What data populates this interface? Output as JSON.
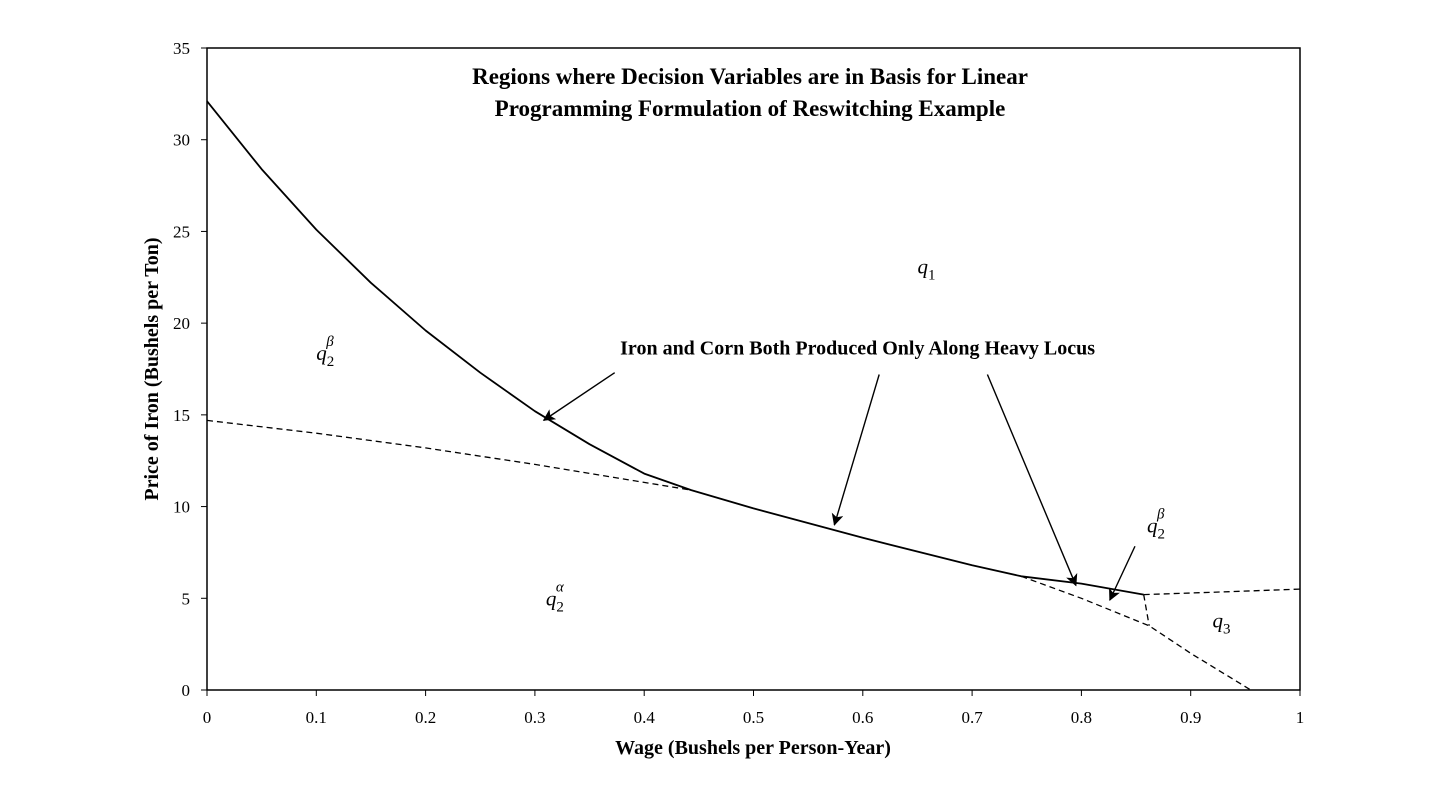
{
  "chart_data": {
    "type": "line",
    "title_lines": [
      "Regions where Decision Variables are in Basis for Linear",
      "Programming Formulation of Reswitching Example"
    ],
    "xlabel": "Wage (Bushels per Person-Year)",
    "ylabel": "Price of Iron (Bushels per Ton)",
    "xlim": [
      0,
      1
    ],
    "ylim": [
      0,
      35
    ],
    "x_ticks": [
      0,
      0.1,
      0.2,
      0.3,
      0.4,
      0.5,
      0.6,
      0.7,
      0.8,
      0.9,
      1
    ],
    "x_tick_labels": [
      "0",
      "0.1",
      "0.2",
      "0.3",
      "0.4",
      "0.5",
      "0.6",
      "0.7",
      "0.8",
      "0.9",
      "1"
    ],
    "y_ticks": [
      0,
      5,
      10,
      15,
      20,
      25,
      30,
      35
    ],
    "y_tick_labels": [
      "0",
      "5",
      "10",
      "15",
      "20",
      "25",
      "30",
      "35"
    ],
    "grid": false,
    "series": [
      {
        "name": "heavy-locus",
        "style": "solid",
        "x": [
          0,
          0.05,
          0.1,
          0.15,
          0.2,
          0.25,
          0.3,
          0.35,
          0.4,
          0.443,
          0.5,
          0.6,
          0.7,
          0.745,
          0.8,
          0.857
        ],
        "y": [
          32.1,
          28.4,
          25.1,
          22.2,
          19.6,
          17.3,
          15.2,
          13.4,
          11.8,
          10.9,
          9.9,
          8.3,
          6.8,
          6.2,
          5.8,
          5.2
        ]
      },
      {
        "name": "dashed-upper-left",
        "style": "dashed",
        "x": [
          0,
          0.1,
          0.2,
          0.3,
          0.443
        ],
        "y": [
          14.7,
          14.0,
          13.2,
          12.3,
          10.9
        ]
      },
      {
        "name": "dashed-lower-right",
        "style": "dashed",
        "x": [
          0.745,
          0.8,
          0.862,
          0.9,
          0.955
        ],
        "y": [
          6.2,
          5.0,
          3.5,
          2.0,
          0
        ]
      },
      {
        "name": "dashed-right-branch",
        "style": "dashed",
        "x": [
          0.857,
          0.93,
          1.0
        ],
        "y": [
          5.2,
          5.35,
          5.5
        ]
      },
      {
        "name": "dashed-vertical-split",
        "style": "dashed",
        "x": [
          0.857,
          0.862
        ],
        "y": [
          5.2,
          3.5
        ]
      }
    ],
    "annotations": [
      {
        "text": "Iron and Corn Both Produced Only Along Heavy Locus",
        "x": 0.378,
        "y": 18.3,
        "arrows": [
          {
            "from": [
              0.373,
              17.3
            ],
            "to": [
              0.308,
              14.7
            ]
          },
          {
            "from": [
              0.615,
              17.2
            ],
            "to": [
              0.574,
              9.0
            ]
          },
          {
            "from": [
              0.714,
              17.2
            ],
            "to": [
              0.795,
              5.7
            ]
          }
        ]
      }
    ],
    "region_labels": [
      {
        "base": "q",
        "sub": "1",
        "sup": "",
        "x": 0.65,
        "y": 22.7
      },
      {
        "base": "q",
        "sub": "2",
        "sup": "β",
        "x": 0.1,
        "y": 18.0
      },
      {
        "base": "q",
        "sub": "2",
        "sup": "α",
        "x": 0.31,
        "y": 4.6
      },
      {
        "base": "q",
        "sub": "2",
        "sup": "β",
        "x": 0.86,
        "y": 8.6,
        "arrow_to": [
          0.826,
          4.9
        ]
      },
      {
        "base": "q",
        "sub": "3",
        "sup": "",
        "x": 0.92,
        "y": 3.4
      }
    ]
  }
}
